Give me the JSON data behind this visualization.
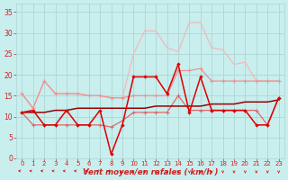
{
  "x": [
    0,
    1,
    2,
    3,
    4,
    5,
    6,
    7,
    8,
    9,
    10,
    11,
    12,
    13,
    14,
    15,
    16,
    17,
    18,
    19,
    20,
    21,
    22,
    23
  ],
  "line_very_light": [
    15.5,
    12,
    18.5,
    15.5,
    15.5,
    15.5,
    15,
    15,
    14.5,
    14.5,
    25,
    30.5,
    30.5,
    26.5,
    25.5,
    32.5,
    32.5,
    26.5,
    26,
    22.5,
    23,
    18.5,
    18.5,
    18.5
  ],
  "line_light1": [
    15.5,
    12,
    18.5,
    15.5,
    15.5,
    15.5,
    15,
    15,
    14.5,
    14.5,
    15,
    15,
    15,
    15,
    21,
    21,
    21.5,
    18.5,
    18.5,
    18.5,
    18.5,
    18.5,
    18.5,
    18.5
  ],
  "line_light2": [
    15.5,
    null,
    null,
    null,
    null,
    null,
    null,
    null,
    null,
    null,
    null,
    null,
    null,
    null,
    null,
    null,
    null,
    null,
    null,
    null,
    null,
    null,
    null,
    null
  ],
  "line_medium": [
    11,
    8,
    8,
    8,
    8,
    8,
    8,
    8,
    7.5,
    9,
    11,
    11,
    11,
    11,
    15,
    11.5,
    11.5,
    11.5,
    11.5,
    11.5,
    11.5,
    11.5,
    8,
    14.5
  ],
  "line_dark_red": [
    11,
    11.5,
    8,
    8,
    11.5,
    8,
    8,
    11.5,
    1,
    8,
    19.5,
    19.5,
    19.5,
    15.5,
    22.5,
    11,
    19.5,
    11.5,
    11.5,
    11.5,
    11.5,
    8,
    8,
    14.5
  ],
  "line_trend": [
    11,
    11,
    11,
    11.5,
    11.5,
    12,
    12,
    12,
    12,
    12,
    12,
    12,
    12.5,
    12.5,
    12.5,
    12.5,
    12.5,
    13,
    13,
    13,
    13.5,
    13.5,
    13.5,
    14
  ],
  "background_color": "#c8eeee",
  "grid_color": "#aed4d4",
  "xlabel": "Vent moyen/en rafales ( km/h )",
  "ylim": [
    0,
    37
  ],
  "xlim": [
    -0.5,
    23.5
  ],
  "yticks": [
    0,
    5,
    10,
    15,
    20,
    25,
    30,
    35
  ],
  "xticks": [
    0,
    1,
    2,
    3,
    4,
    5,
    6,
    7,
    8,
    9,
    10,
    11,
    12,
    13,
    14,
    15,
    16,
    17,
    18,
    19,
    20,
    21,
    22,
    23
  ],
  "color_very_light": "#f4b8b8",
  "color_light": "#f09090",
  "color_medium": "#e06868",
  "color_dark": "#dd0000",
  "color_darkest": "#990000",
  "tick_color": "#cc2222",
  "xlabel_color": "#cc2222"
}
